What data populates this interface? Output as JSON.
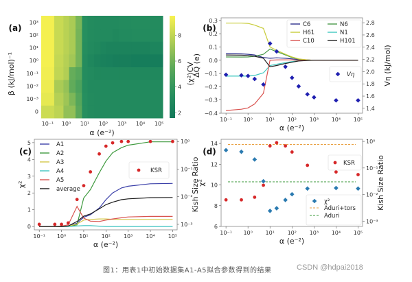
{
  "caption": "图1：用表1中初始数据集A1-A5拟合参数得到的结果",
  "watermark": "CSDN @hdpai2018",
  "chart_data": [
    {
      "panel": "(a)",
      "type": "heatmap",
      "xlabel": "α (e⁻²)",
      "ylabel": "β (kJ/mol)⁻¹",
      "colorbar_label": "⟨χ²⟩CV",
      "colorbar_ticks": [
        2,
        4,
        6,
        8
      ],
      "colorbar_range": [
        1.6,
        9.5
      ],
      "x": [
        0.1,
        0.5,
        1,
        2,
        5,
        10,
        20,
        50,
        100,
        200,
        500,
        1000,
        10000,
        100000
      ],
      "x_tick_labels": [
        "10⁻¹",
        "10⁰",
        "10¹",
        "10²",
        "10³",
        "10⁴",
        "10⁵"
      ],
      "y": [
        "0",
        "1e-3",
        "1e-2",
        "1e-1",
        "1e0",
        "1e1",
        "1e2",
        "1e3"
      ],
      "y_tick_labels": [
        "0",
        "10⁻³",
        "10⁻²",
        "10⁻¹",
        "10⁰",
        "10¹",
        "10²",
        "10³"
      ],
      "values": [
        [
          8.3,
          7.9,
          6.8,
          6.8,
          5.4,
          3.4,
          3.1,
          3.0,
          3.0,
          3.0,
          3.0,
          3.0,
          3.0,
          3.0
        ],
        [
          9.0,
          7.7,
          7.1,
          6.3,
          5.2,
          3.4,
          3.1,
          3.0,
          3.0,
          3.0,
          3.0,
          3.0,
          3.0,
          3.0
        ],
        [
          9.2,
          7.4,
          6.9,
          5.6,
          4.9,
          3.3,
          3.0,
          3.0,
          3.0,
          3.0,
          3.0,
          3.0,
          3.0,
          3.0
        ],
        [
          9.3,
          8.0,
          7.6,
          5.7,
          5.3,
          3.2,
          3.0,
          2.9,
          2.9,
          2.9,
          2.9,
          2.9,
          2.9,
          2.9
        ],
        [
          9.4,
          8.1,
          7.7,
          7.2,
          6.1,
          3.2,
          2.8,
          2.5,
          2.3,
          2.2,
          2.1,
          2.1,
          2.0,
          2.0
        ],
        [
          9.4,
          8.2,
          7.8,
          7.4,
          6.1,
          3.3,
          3.0,
          2.9,
          2.6,
          2.5,
          2.5,
          2.5,
          2.5,
          2.6
        ],
        [
          9.4,
          8.2,
          7.8,
          7.4,
          6.1,
          3.4,
          3.1,
          3.0,
          3.0,
          3.0,
          2.9,
          3.0,
          3.1,
          3.1
        ],
        [
          9.4,
          8.2,
          7.8,
          7.4,
          6.2,
          3.4,
          3.1,
          3.0,
          3.0,
          3.0,
          3.0,
          3.1,
          3.2,
          3.1
        ]
      ]
    },
    {
      "panel": "(b)",
      "type": "line",
      "xlabel": "α (e⁻²)",
      "ylabel": "ΔQ (e)",
      "y2label": "Vη (kJ/mol)",
      "xscale": "log",
      "xlim": [
        0.06,
        160000
      ],
      "ylim": [
        -0.4,
        0.32
      ],
      "y2lim": [
        1.32,
        2.88
      ],
      "x_tick_labels": [
        "10⁻¹",
        "10⁰",
        "10¹",
        "10²",
        "10³",
        "10⁴",
        "10⁵"
      ],
      "y_ticks": [
        -0.4,
        -0.3,
        -0.2,
        -0.1,
        0.0,
        0.1,
        0.2,
        0.3
      ],
      "y_tick_labels": [
        "−0.4",
        "−0.3",
        "−0.2",
        "−0.1",
        "0.0",
        "0.1",
        "0.2",
        "0.3"
      ],
      "y2_ticks": [
        1.4,
        1.6,
        1.8,
        2.0,
        2.2,
        2.4,
        2.6,
        2.8
      ],
      "y2_tick_labels": [
        "1.4",
        "1.6",
        "1.8",
        "2.0",
        "2.2",
        "2.4",
        "2.6",
        "2.8"
      ],
      "legend_position": "top-right",
      "x": [
        0.1,
        0.5,
        1,
        2,
        5,
        10,
        20,
        50,
        100,
        200,
        500,
        1000,
        10000,
        100000
      ],
      "series": [
        {
          "name": "C6",
          "color": "#2c2f8c",
          "values": [
            0.05,
            0.048,
            0.045,
            0.04,
            0.02,
            0.015,
            0.018,
            0.015,
            0.01,
            0.005,
            0.002,
            0.0,
            0.0,
            0.0
          ]
        },
        {
          "name": "N6",
          "color": "#4a9a4a",
          "values": [
            0.025,
            0.024,
            0.025,
            0.03,
            0.045,
            0.085,
            0.065,
            0.04,
            0.02,
            0.008,
            0.002,
            0.0,
            0.0,
            0.0
          ]
        },
        {
          "name": "H61",
          "color": "#c8cc3a",
          "values": [
            0.28,
            0.28,
            0.278,
            0.265,
            0.24,
            0.1,
            0.075,
            0.045,
            0.025,
            0.01,
            0.003,
            0.0,
            0.0,
            0.0
          ]
        },
        {
          "name": "N1",
          "color": "#40c8c0",
          "values": [
            -0.12,
            -0.12,
            -0.12,
            -0.115,
            -0.095,
            -0.04,
            -0.03,
            -0.018,
            -0.01,
            -0.004,
            -0.001,
            0.0,
            0.0,
            0.0
          ]
        },
        {
          "name": "C10",
          "color": "#d9534f",
          "values": [
            -0.38,
            -0.37,
            -0.36,
            -0.33,
            -0.25,
            0.0,
            0.002,
            0.003,
            0.002,
            0.001,
            0.0,
            0.0,
            0.0,
            0.0
          ]
        },
        {
          "name": "H101",
          "color": "#222222",
          "values": [
            0.04,
            0.038,
            0.035,
            0.03,
            0.015,
            -0.05,
            -0.04,
            -0.025,
            -0.015,
            -0.006,
            -0.002,
            0.0,
            0.0,
            0.0
          ]
        }
      ],
      "scatter": {
        "name": "Vη",
        "color": "#1f1fb0",
        "axis": "right",
        "marker": "diamond",
        "x": [
          0.1,
          0.5,
          1,
          2,
          5,
          10,
          20,
          50,
          100,
          200,
          500,
          1000,
          10000,
          100000
        ],
        "values": [
          1.95,
          1.94,
          1.93,
          1.88,
          1.79,
          2.46,
          2.33,
          2.08,
          1.9,
          1.76,
          1.63,
          1.58,
          1.53,
          1.53
        ]
      }
    },
    {
      "panel": "(c)",
      "type": "line",
      "xlabel": "α (e⁻²)",
      "ylabel": "χ²",
      "y2label": "Kish Size Ratio",
      "xscale": "log",
      "xlim": [
        0.06,
        160000
      ],
      "ylim": [
        -0.2,
        5.2
      ],
      "y2lim_log10": [
        -3.2,
        0.08
      ],
      "x_tick_labels": [
        "10⁻¹",
        "10⁰",
        "10¹",
        "10²",
        "10³",
        "10⁴",
        "10⁵"
      ],
      "y_ticks": [
        0,
        1,
        2,
        3,
        4,
        5
      ],
      "y_tick_labels": [
        "0",
        "1",
        "2",
        "3",
        "4",
        "5"
      ],
      "y2_ticks_log10": [
        -3,
        -2,
        -1,
        0
      ],
      "y2_tick_labels": [
        "10⁻³",
        "10⁻²",
        "10⁻¹",
        "10⁰"
      ],
      "legend_position": "top-left",
      "x": [
        0.1,
        0.5,
        1,
        2,
        5,
        10,
        20,
        50,
        100,
        200,
        500,
        1000,
        10000,
        100000
      ],
      "series": [
        {
          "name": "A1",
          "color": "#3a3fa8",
          "values": [
            0.0,
            0.0,
            0.0,
            0.02,
            0.2,
            0.55,
            0.7,
            1.1,
            1.6,
            2.0,
            2.3,
            2.4,
            2.55,
            2.57
          ]
        },
        {
          "name": "A2",
          "color": "#3f9a3f",
          "values": [
            0.0,
            0.0,
            0.0,
            0.01,
            0.1,
            1.7,
            2.2,
            3.2,
            3.9,
            4.4,
            4.7,
            4.85,
            5.05,
            5.05
          ]
        },
        {
          "name": "A3",
          "color": "#d4c84a",
          "values": [
            0.0,
            0.0,
            0.0,
            0.02,
            0.15,
            0.38,
            0.42,
            0.45,
            0.45,
            0.43,
            0.42,
            0.42,
            0.42,
            0.42
          ]
        },
        {
          "name": "A4",
          "color": "#3fc4c0",
          "values": [
            0.0,
            0.0,
            0.0,
            0.0,
            0.03,
            0.05,
            0.05,
            0.02,
            0.0,
            0.0,
            0.0,
            0.0,
            0.0,
            0.0
          ]
        },
        {
          "name": "A5",
          "color": "#d9534f",
          "values": [
            0.0,
            0.0,
            0.02,
            0.1,
            1.2,
            0.5,
            0.32,
            0.3,
            0.38,
            0.45,
            0.52,
            0.57,
            0.6,
            0.6
          ]
        },
        {
          "name": "average",
          "color": "#1a1a1a",
          "values": [
            0.0,
            0.0,
            0.0,
            0.03,
            0.3,
            0.62,
            0.75,
            1.05,
            1.3,
            1.45,
            1.6,
            1.65,
            1.72,
            1.73
          ]
        }
      ],
      "scatter": {
        "name": "KSR",
        "color": "#d62728",
        "axis": "right",
        "marker": "circle",
        "x": [
          0.1,
          0.5,
          1,
          2,
          5,
          10,
          20,
          50,
          100,
          200,
          500,
          1000,
          10000,
          100000
        ],
        "values_log10": [
          -3.0,
          -3.0,
          -3.0,
          -2.95,
          -2.1,
          -1.6,
          -1.1,
          -0.45,
          -0.17,
          -0.05,
          0.0,
          0.0,
          0.0,
          0.0
        ]
      }
    },
    {
      "panel": "(d)",
      "type": "scatter",
      "xlabel": "α (e⁻²)",
      "ylabel": "χ²",
      "y2label": "Kish Size Ratio",
      "xscale": "log",
      "xlim": [
        0.06,
        160000
      ],
      "ylim": [
        6,
        14.4
      ],
      "y2lim_log10": [
        -3.2,
        0.08
      ],
      "x_tick_labels": [
        "10⁻¹",
        "10⁰",
        "10¹",
        "10²",
        "10³",
        "10⁴",
        "10⁵"
      ],
      "y_ticks": [
        6,
        8,
        10,
        12,
        14
      ],
      "y_tick_labels": [
        "6",
        "8",
        "10",
        "12",
        "14"
      ],
      "y2_ticks_log10": [
        -3,
        -2,
        -1,
        0
      ],
      "y2_tick_labels": [
        "10⁻³",
        "10⁻²",
        "10⁻¹",
        "10⁰"
      ],
      "legend_position": "right",
      "series": [
        {
          "name": "χ²",
          "color": "#2a7ab0",
          "axis": "left",
          "marker": "diamond",
          "x": [
            0.1,
            0.5,
            2,
            5,
            10,
            20,
            50,
            100,
            500,
            10000,
            100000
          ],
          "values": [
            13.35,
            13.2,
            12.45,
            10.35,
            7.5,
            7.75,
            8.55,
            9.1,
            9.65,
            9.7,
            9.65
          ]
        },
        {
          "name": "KSR",
          "color": "#d62728",
          "axis": "right",
          "marker": "circle",
          "x": [
            0.1,
            0.5,
            2,
            5,
            10,
            20,
            50,
            100,
            500,
            10000,
            100000
          ],
          "values_log10": [
            -2.2,
            -2.2,
            -2.1,
            -1.65,
            -0.17,
            -0.05,
            -0.17,
            -0.4,
            -0.9,
            -1.15,
            -1.25
          ]
        }
      ],
      "hlines": [
        {
          "name": "Aduri+tors",
          "color": "#e8a040",
          "style": "dashed",
          "value": 13.9
        },
        {
          "name": "Aduri",
          "color": "#3a9a3a",
          "style": "dashed",
          "value": 10.3
        }
      ]
    }
  ]
}
